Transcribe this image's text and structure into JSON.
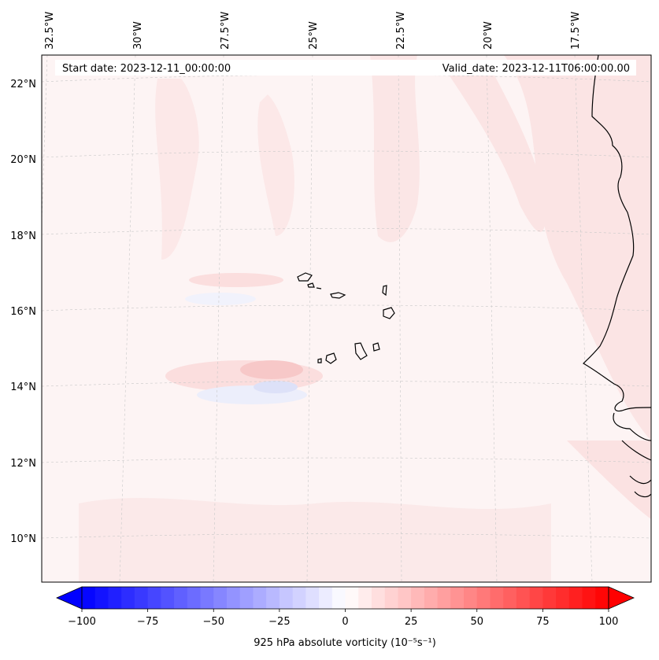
{
  "map": {
    "start_date_text": "Start date: 2023-12-11_00:00:00",
    "valid_date_text": "Valid_date: 2023-12-11T06:00:00.00",
    "lon_labels": [
      "32.5°W",
      "30°W",
      "27.5°W",
      "25°W",
      "22.5°W",
      "20°W",
      "17.5°W"
    ],
    "lat_labels": [
      "22°N",
      "20°N",
      "18°N",
      "16°N",
      "14°N",
      "12°N",
      "10°N"
    ],
    "gridlines": "dashed",
    "coastline_color": "#000000"
  },
  "colorbar": {
    "label": "925 hPa absolute vorticity (10⁻⁵s⁻¹)",
    "ticks": [
      "−100",
      "−75",
      "−50",
      "−25",
      "0",
      "25",
      "50",
      "75",
      "100"
    ],
    "min": -100,
    "max": 100,
    "levels": 40,
    "extend": "both",
    "colormap": "bwr",
    "low_color": "#0000ff",
    "mid_color": "#ffffff",
    "high_color": "#ff0000"
  }
}
